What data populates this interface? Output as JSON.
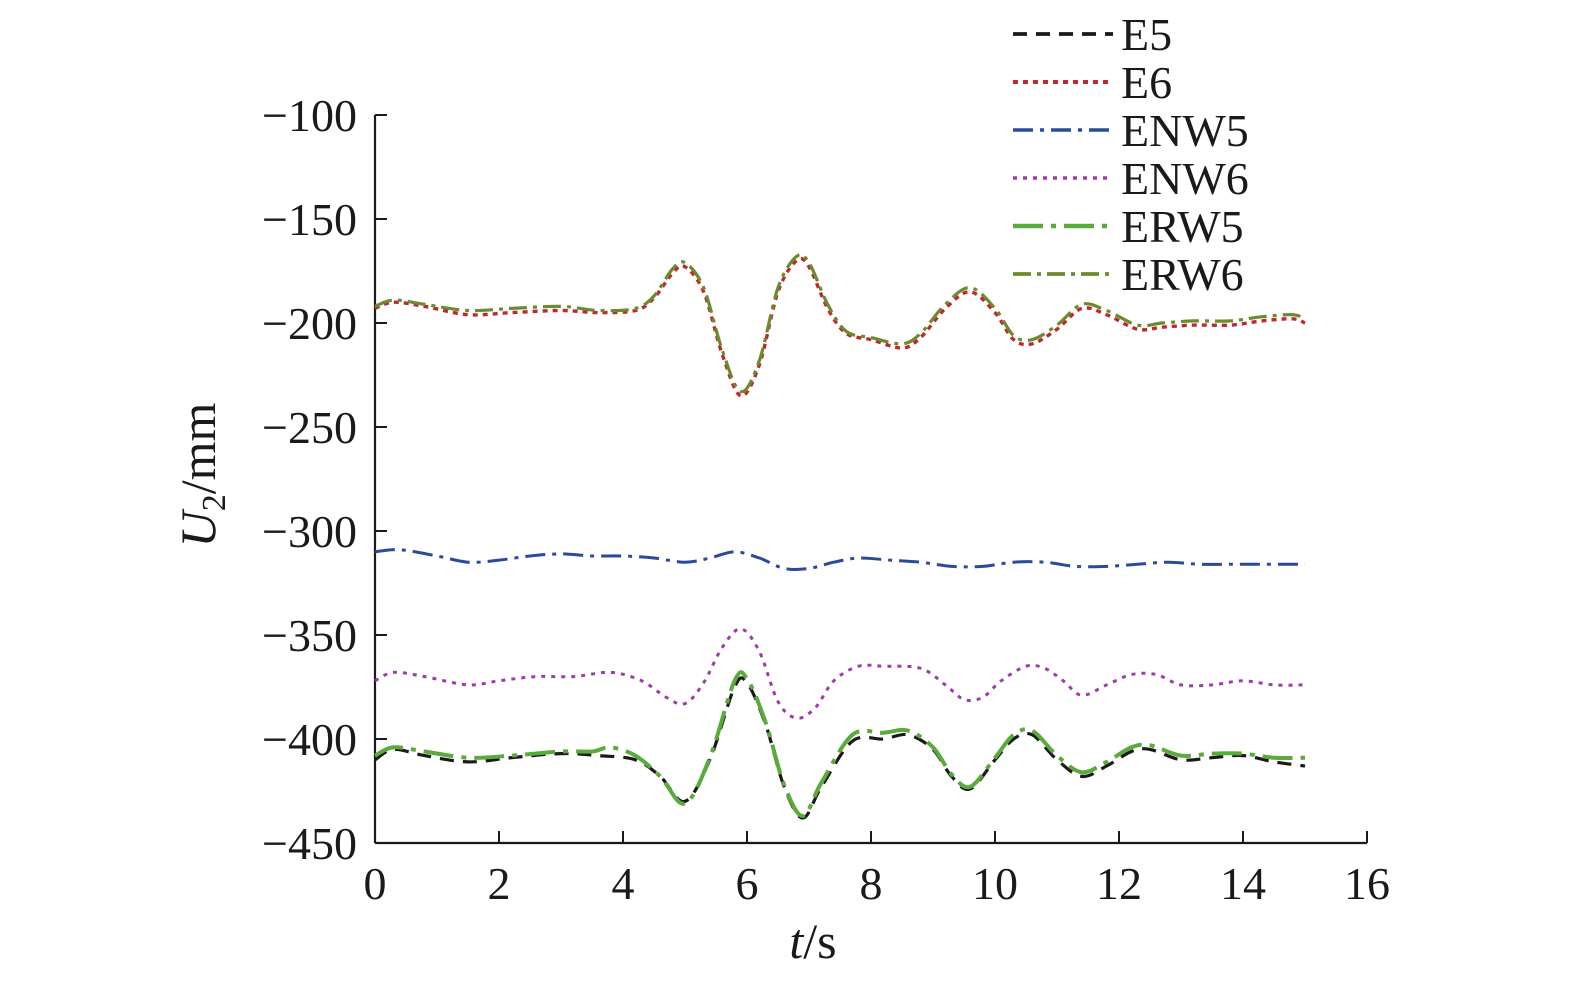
{
  "chart_data": {
    "type": "line",
    "title": "",
    "xlabel": "t/s",
    "ylabel": "U2/mm",
    "xlim": [
      0,
      16
    ],
    "ylim": [
      -450,
      -100
    ],
    "xticks": [
      0,
      2,
      4,
      6,
      8,
      10,
      12,
      14,
      16
    ],
    "yticks": [
      -100,
      -150,
      -200,
      -250,
      -300,
      -350,
      -400,
      -450
    ],
    "xtick_labels": [
      "0",
      "2",
      "4",
      "6",
      "8",
      "10",
      "12",
      "14",
      "16"
    ],
    "ytick_labels": [
      "−100",
      "−150",
      "−200",
      "−250",
      "−300",
      "−350",
      "−400",
      "−450"
    ],
    "grid": false,
    "legend_position": "top-right",
    "series": [
      {
        "name": "E5",
        "color": "#1a1a1a",
        "dash": "14,9",
        "width": 3.2,
        "x": [
          0,
          0.3,
          0.8,
          1.5,
          2.2,
          3,
          3.6,
          4.2,
          4.6,
          5,
          5.4,
          5.8,
          6,
          6.3,
          6.6,
          6.9,
          7.2,
          7.7,
          8.2,
          8.6,
          9,
          9.3,
          9.6,
          10,
          10.3,
          10.6,
          11,
          11.4,
          11.8,
          12.2,
          12.5,
          13,
          13.5,
          14,
          14.5,
          15
        ],
        "y": [
          -410,
          -405,
          -408,
          -411,
          -409,
          -407,
          -408,
          -410,
          -418,
          -430,
          -410,
          -375,
          -373,
          -393,
          -423,
          -438,
          -423,
          -401,
          -400,
          -398,
          -405,
          -418,
          -424,
          -410,
          -400,
          -398,
          -410,
          -418,
          -413,
          -406,
          -405,
          -410,
          -409,
          -408,
          -411,
          -413
        ]
      },
      {
        "name": "E6",
        "color": "#c0282d",
        "dash": "5,5",
        "width": 3.4,
        "x": [
          0,
          0.3,
          0.8,
          1.5,
          2.2,
          3,
          3.6,
          4.2,
          4.5,
          4.8,
          5,
          5.3,
          5.6,
          5.9,
          6.2,
          6.5,
          6.8,
          7,
          7.3,
          7.6,
          8,
          8.5,
          8.8,
          9.2,
          9.6,
          10,
          10.3,
          10.6,
          11,
          11.4,
          11.8,
          12.3,
          12.7,
          13.2,
          13.8,
          14.3,
          14.8,
          15
        ],
        "y": [
          -193,
          -190,
          -192,
          -196,
          -195,
          -194,
          -195,
          -194,
          -188,
          -176,
          -173,
          -185,
          -215,
          -235,
          -220,
          -185,
          -170,
          -173,
          -193,
          -205,
          -208,
          -212,
          -207,
          -193,
          -185,
          -195,
          -208,
          -210,
          -203,
          -193,
          -196,
          -203,
          -202,
          -201,
          -201,
          -199,
          -198,
          -200
        ]
      },
      {
        "name": "ENW5",
        "color": "#2a4a9a",
        "dash": "20,7,4,7",
        "width": 3,
        "x": [
          0,
          0.4,
          1,
          1.5,
          2,
          2.5,
          3,
          3.5,
          4,
          4.5,
          5,
          5.4,
          5.8,
          6.2,
          6.6,
          7,
          7.4,
          7.8,
          8.3,
          8.8,
          9.3,
          9.8,
          10.3,
          10.8,
          11.3,
          11.8,
          12.3,
          12.8,
          13.3,
          13.8,
          14.3,
          14.8,
          15
        ],
        "y": [
          -310,
          -309,
          -312,
          -315,
          -314,
          -312,
          -311,
          -312,
          -312,
          -313,
          -315,
          -313,
          -310,
          -313,
          -318,
          -318,
          -315,
          -313,
          -314,
          -315,
          -317,
          -317,
          -315,
          -315,
          -317,
          -317,
          -316,
          -315,
          -316,
          -316,
          -316,
          -316,
          -316
        ]
      },
      {
        "name": "ENW6",
        "color": "#9b3ea6",
        "dash": "4,6",
        "width": 3,
        "x": [
          0,
          0.3,
          0.8,
          1.5,
          2,
          2.6,
          3.2,
          3.8,
          4.3,
          4.7,
          5,
          5.3,
          5.6,
          5.9,
          6.2,
          6.5,
          6.8,
          7.1,
          7.4,
          7.8,
          8.2,
          8.8,
          9.2,
          9.5,
          9.8,
          10.1,
          10.5,
          10.8,
          11.1,
          11.4,
          11.8,
          12.2,
          12.6,
          13,
          13.5,
          14,
          14.5,
          15
        ],
        "y": [
          -372,
          -368,
          -370,
          -374,
          -372,
          -370,
          -370,
          -368,
          -372,
          -380,
          -383,
          -373,
          -356,
          -347,
          -358,
          -382,
          -390,
          -385,
          -372,
          -365,
          -365,
          -366,
          -374,
          -381,
          -380,
          -372,
          -365,
          -366,
          -372,
          -379,
          -374,
          -369,
          -369,
          -374,
          -374,
          -372,
          -374,
          -374
        ]
      },
      {
        "name": "ERW5",
        "color": "#5aaa3c",
        "dash": "30,8,5,8",
        "width": 4,
        "x": [
          0,
          0.3,
          0.8,
          1.5,
          2.2,
          3,
          3.5,
          3.8,
          4.2,
          4.6,
          5,
          5.4,
          5.8,
          6,
          6.3,
          6.6,
          6.9,
          7.2,
          7.7,
          8.2,
          8.6,
          9,
          9.3,
          9.6,
          10,
          10.3,
          10.6,
          11,
          11.4,
          11.8,
          12.2,
          12.5,
          13,
          13.5,
          14,
          14.5,
          15
        ],
        "y": [
          -408,
          -404,
          -406,
          -409,
          -408,
          -406,
          -406,
          -404,
          -408,
          -418,
          -431,
          -409,
          -372,
          -371,
          -392,
          -422,
          -437,
          -421,
          -398,
          -397,
          -396,
          -404,
          -417,
          -423,
          -409,
          -398,
          -396,
          -408,
          -416,
          -411,
          -404,
          -403,
          -408,
          -407,
          -407,
          -409,
          -409
        ]
      },
      {
        "name": "ERW6",
        "color": "#6b8c2e",
        "dash": "18,6,4,6",
        "width": 3.2,
        "x": [
          0,
          0.3,
          0.8,
          1.5,
          2.2,
          3,
          3.6,
          4.2,
          4.5,
          4.8,
          5,
          5.3,
          5.6,
          5.9,
          6.2,
          6.5,
          6.8,
          7,
          7.3,
          7.6,
          8,
          8.5,
          8.8,
          9.2,
          9.6,
          10,
          10.3,
          10.6,
          11,
          11.4,
          11.8,
          12.3,
          12.7,
          13.2,
          13.8,
          14.3,
          14.8,
          15
        ],
        "y": [
          -192,
          -189,
          -191,
          -194,
          -193,
          -192,
          -194,
          -193,
          -187,
          -174,
          -171,
          -183,
          -213,
          -233,
          -218,
          -183,
          -168,
          -171,
          -191,
          -204,
          -207,
          -210,
          -205,
          -191,
          -183,
          -193,
          -206,
          -208,
          -201,
          -191,
          -194,
          -201,
          -200,
          -199,
          -199,
          -197,
          -196,
          -198
        ]
      }
    ]
  }
}
